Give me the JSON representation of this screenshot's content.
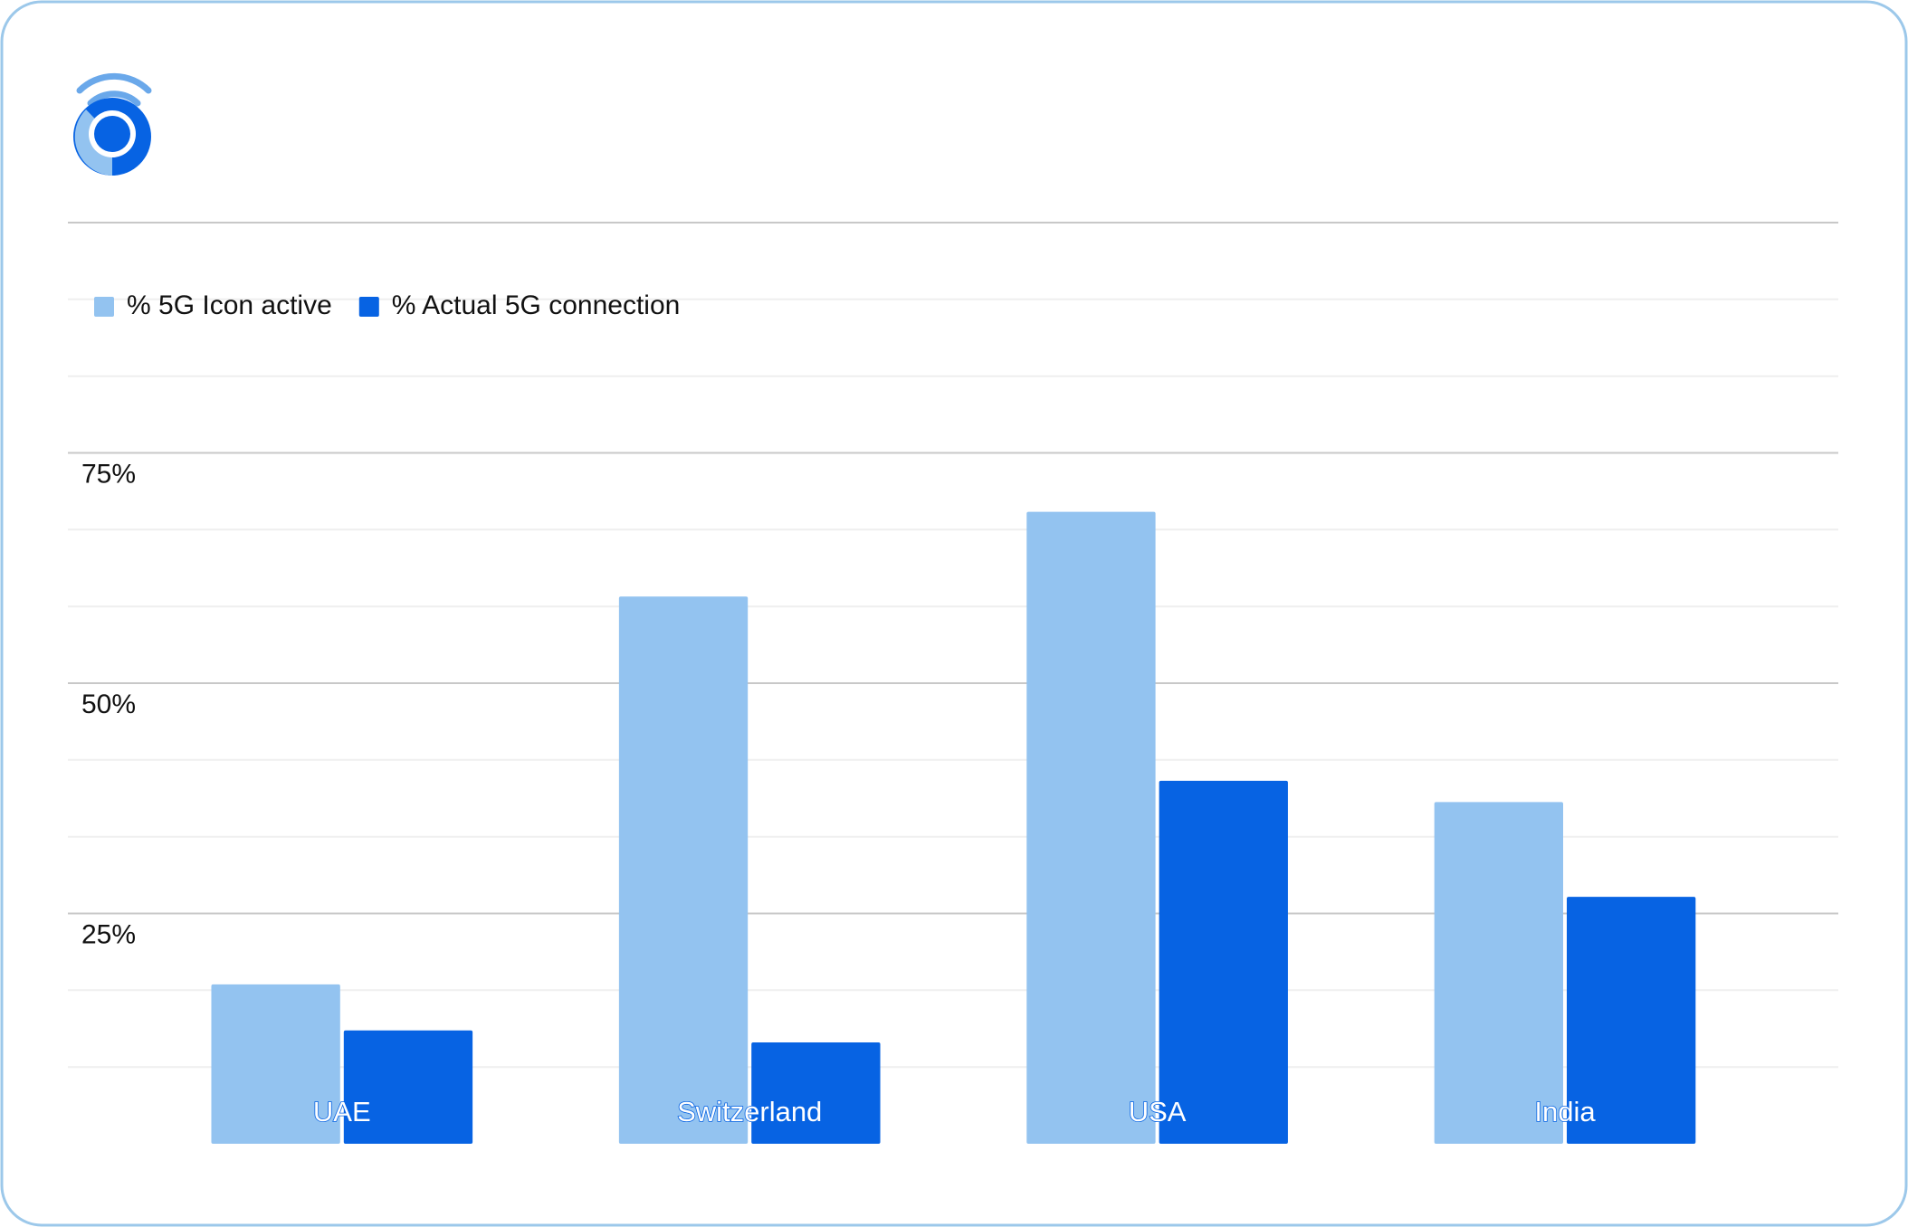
{
  "chart_data": {
    "type": "bar",
    "categories": [
      "UAE",
      "Switzerland",
      "USA",
      "India"
    ],
    "series": [
      {
        "name": "% 5G Icon active",
        "color": "#93c3f0",
        "values": [
          17.3,
          59.4,
          68.6,
          37.1
        ]
      },
      {
        "name": "% Actual 5G connection",
        "color": "#0763e3",
        "values": [
          12.3,
          11.0,
          39.4,
          26.8
        ]
      }
    ],
    "ylim": [
      0,
      100
    ],
    "yticks": [
      {
        "value": 25,
        "label": "25%"
      },
      {
        "value": 50,
        "label": "50%"
      },
      {
        "value": 75,
        "label": "75%"
      }
    ],
    "minor_yticks": [
      8.33,
      16.67,
      33.33,
      41.67,
      58.33,
      66.67,
      83.33,
      91.67
    ],
    "grid": true,
    "legend": "top-left"
  }
}
